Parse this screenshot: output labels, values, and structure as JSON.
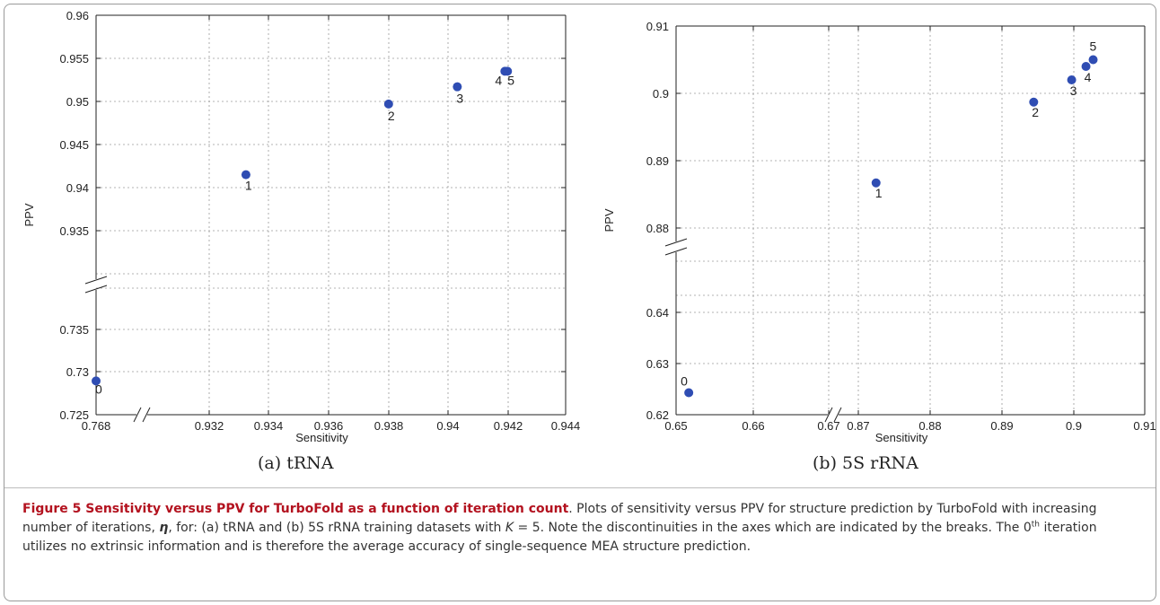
{
  "chart_data": [
    {
      "type": "scatter",
      "xlabel": "Sensitivity",
      "ylabel": "PPV",
      "grid": true,
      "x_segments": [
        {
          "range": [
            0.768,
            0.7685
          ],
          "ticks": [
            "0.768"
          ]
        },
        {
          "range": [
            0.93,
            0.944
          ],
          "ticks": [
            "0.932",
            "0.934",
            "0.936",
            "0.938",
            "0.94",
            "0.942",
            "0.944"
          ]
        }
      ],
      "y_segments": [
        {
          "range": [
            0.725,
            0.74
          ],
          "ticks": [
            "0.725",
            "0.73",
            "0.735"
          ]
        },
        {
          "range": [
            0.93,
            0.96
          ],
          "ticks": [
            "0.935",
            "0.94",
            "0.945",
            "0.95",
            "0.955",
            "0.96"
          ]
        }
      ],
      "points": [
        {
          "label": "0",
          "x": 0.7683,
          "y": 0.729
        },
        {
          "label": "1",
          "x": 0.9319,
          "y": 0.9415
        },
        {
          "label": "2",
          "x": 0.9373,
          "y": 0.9497
        },
        {
          "label": "3",
          "x": 0.9399,
          "y": 0.9517
        },
        {
          "label": "4",
          "x": 0.9417,
          "y": 0.9535
        },
        {
          "label": "5",
          "x": 0.9418,
          "y": 0.9535
        }
      ],
      "subcaption": "(a) tRNA"
    },
    {
      "type": "scatter",
      "xlabel": "Sensitivity",
      "ylabel": "PPV",
      "grid": true,
      "x_segments": [
        {
          "range": [
            0.65,
            0.68
          ],
          "ticks": [
            "0.65",
            "0.66",
            "0.67"
          ]
        },
        {
          "range": [
            0.86,
            0.91
          ],
          "ticks": [
            "0.87",
            "0.88",
            "0.89",
            "0.9",
            "0.91"
          ]
        }
      ],
      "y_segments": [
        {
          "range": [
            0.62,
            0.65
          ],
          "ticks": [
            "0.62",
            "0.63",
            "0.64"
          ]
        },
        {
          "range": [
            0.87,
            0.91
          ],
          "ticks": [
            "0.88",
            "0.89",
            "0.9",
            "0.91"
          ]
        }
      ],
      "points": [
        {
          "label": "0",
          "x": 0.6525,
          "y": 0.6243
        },
        {
          "label": "1",
          "x": 0.8725,
          "y": 0.8867
        },
        {
          "label": "2",
          "x": 0.8945,
          "y": 0.8987
        },
        {
          "label": "3",
          "x": 0.8998,
          "y": 0.902
        },
        {
          "label": "4",
          "x": 0.9018,
          "y": 0.904
        },
        {
          "label": "5",
          "x": 0.9028,
          "y": 0.905
        }
      ],
      "subcaption": "(b) 5S rRNA"
    }
  ],
  "colors": {
    "marker": "#2f4db3",
    "grid": "#9a9a9a",
    "caption_title": "#b3121f"
  },
  "caption": {
    "title": "Figure 5 Sensitivity versus PPV for TurboFold as a function of iteration count",
    "part1": ". Plots of sensitivity versus PPV for structure prediction by TurboFold with increasing number of iterations, ",
    "eta": "η",
    "part2": ", for: (a) tRNA and (b) 5S rRNA training datasets with ",
    "k": "K",
    "part3": " = 5. Note the discontinuities in the axes which are indicated by the breaks. The 0",
    "sup": "th",
    "part4": " iteration utilizes no extrinsic information and is therefore the average accuracy of single-sequence MEA structure prediction."
  }
}
